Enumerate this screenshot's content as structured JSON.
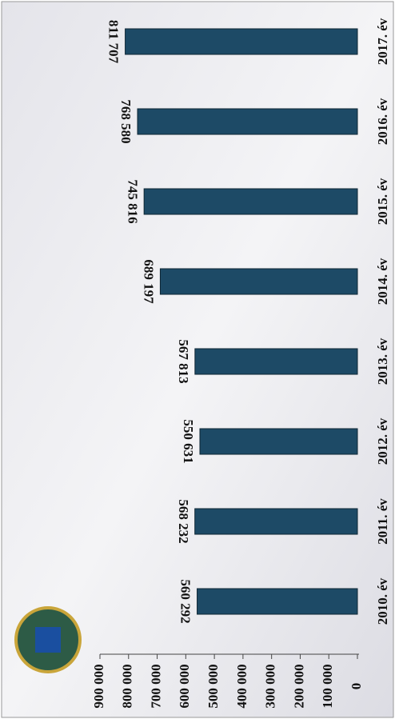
{
  "chart_data": {
    "type": "bar",
    "categories": [
      "2010. év",
      "2011. év",
      "2012. év",
      "2013. év",
      "2014. év",
      "2015. év",
      "2016. év",
      "2017. év"
    ],
    "values": [
      560292,
      568232,
      550631,
      567813,
      689197,
      745816,
      768580,
      811707
    ],
    "value_labels": [
      "560 292",
      "568 232",
      "550 631",
      "567 813",
      "689 197",
      "745 816",
      "768 580",
      "811 707"
    ],
    "color": "#1d4a66",
    "ylim": [
      0,
      900000
    ],
    "yticks": [
      0,
      {
        "value": 100000,
        "label": "100 000"
      },
      {
        "value": 200000,
        "label": "200 000"
      },
      {
        "value": 300000,
        "label": "300 000"
      },
      {
        "value": 400000,
        "label": "400 000"
      },
      {
        "value": 500000,
        "label": "500 000"
      },
      {
        "value": 600000,
        "label": "600 000"
      },
      {
        "value": 700000,
        "label": "700 000"
      },
      {
        "value": 800000,
        "label": "800 000"
      },
      {
        "value": 900000,
        "label": "900 000"
      }
    ]
  }
}
